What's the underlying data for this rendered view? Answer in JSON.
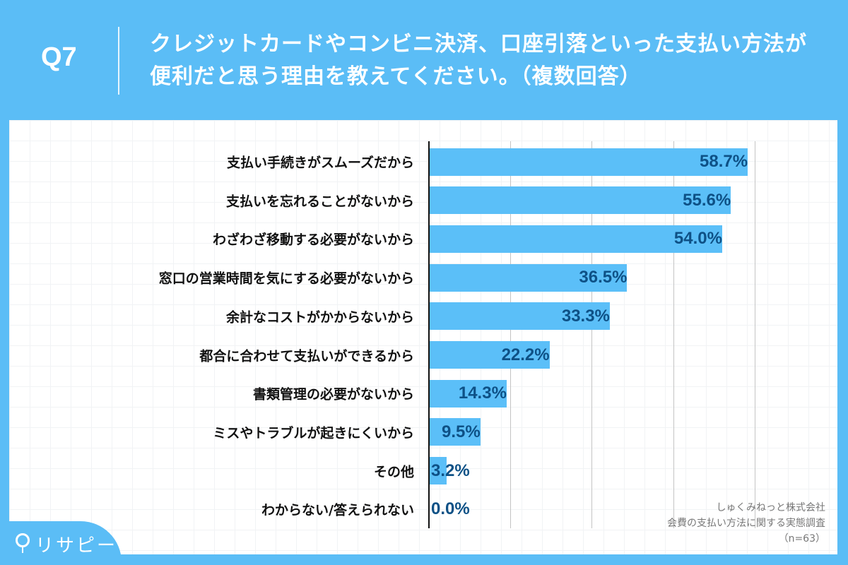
{
  "header": {
    "question_number": "Q7",
    "question": "クレジットカードやコンビニ決済、口座引落といった支払い方法が便利だと思う理由を教えてください。（複数回答）"
  },
  "chart_data": {
    "type": "bar",
    "orientation": "horizontal",
    "categories": [
      "支払い手続きがスムーズだから",
      "支払いを忘れることがないから",
      "わざわざ移動する必要がないから",
      "窓口の営業時間を気にする必要がないから",
      "余計なコストがかからないから",
      "都合に合わせて支払いができるから",
      "書類管理の必要がないから",
      "ミスやトラブルが起きにくいから",
      "その他",
      "わからない/答えられない"
    ],
    "values": [
      58.7,
      55.6,
      54.0,
      36.5,
      33.3,
      22.2,
      14.3,
      9.5,
      3.2,
      0.0
    ],
    "value_labels": [
      "58.7%",
      "55.6%",
      "54.0%",
      "36.5%",
      "33.3%",
      "22.2%",
      "14.3%",
      "9.5%",
      "3.2%",
      "0.0%"
    ],
    "unit": "%",
    "xlim": [
      0,
      75
    ],
    "gridlines": [
      15,
      30,
      45,
      60
    ],
    "grid": true,
    "bar_color": "#5bbff8",
    "label_color": "#0e5186"
  },
  "source": {
    "company": "しゅくみねっと株式会社",
    "survey": "会費の支払い方法に関する実態調査",
    "sample": "（n=63）"
  },
  "logo": {
    "text": "リサピー"
  },
  "colors": {
    "background": "#5bbdf6"
  }
}
